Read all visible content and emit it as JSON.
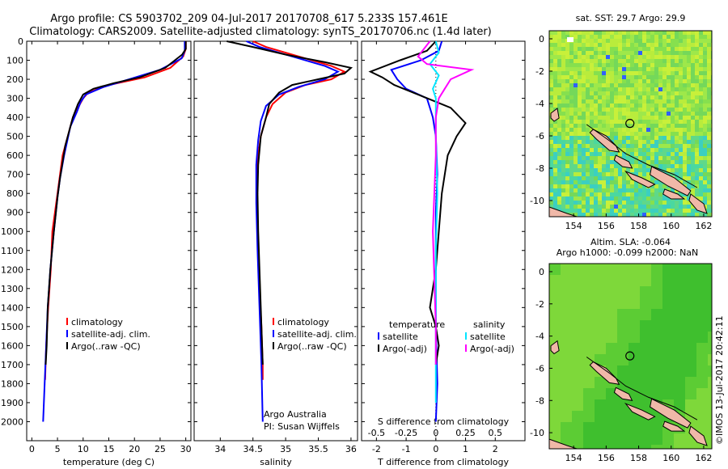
{
  "header": {
    "line1": "Argo profile: CS 5903702_209 04-Jul-2017 20170708_617 5.233S 157.461E",
    "line2": "Climatology: CARS2009. Satellite-adjusted climatology: synTS_20170706.nc (1.4d later)"
  },
  "side_label": "©IMOS 13-Jul-2017 20:42:11",
  "colors": {
    "climatology": "#ff0000",
    "satellite": "#0000ff",
    "argo": "#000000",
    "sat_salinity": "#00e5ff",
    "argo_salinity": "#ff00ff"
  },
  "chart_data": [
    {
      "type": "line",
      "title": "",
      "xlabel": "temperature (deg C)",
      "ylabel": "",
      "xlim": [
        -1,
        31
      ],
      "ylim": [
        2100,
        0
      ],
      "x_ticks": [
        "0",
        "5",
        "10",
        "15",
        "20",
        "25",
        "30"
      ],
      "y_ticks": [
        "0",
        "100",
        "200",
        "300",
        "400",
        "500",
        "600",
        "700",
        "800",
        "900",
        "1000",
        "1100",
        "1200",
        "1300",
        "1400",
        "1500",
        "1600",
        "1700",
        "1800",
        "1900",
        "2000"
      ],
      "legend": [
        "climatology",
        "satellite-adj. clim.",
        "Argo(..raw -QC)"
      ],
      "series": [
        {
          "name": "climatology",
          "color": "#ff0000",
          "points": [
            [
              30,
              0
            ],
            [
              30,
              40
            ],
            [
              29.5,
              80
            ],
            [
              27,
              140
            ],
            [
              22,
              190
            ],
            [
              15,
              230
            ],
            [
              11,
              270
            ],
            [
              10,
              300
            ],
            [
              9,
              350
            ],
            [
              8,
              400
            ],
            [
              7,
              500
            ],
            [
              6,
              600
            ],
            [
              5.5,
              700
            ],
            [
              5,
              800
            ],
            [
              4.5,
              900
            ],
            [
              4,
              1000
            ],
            [
              3.7,
              1200
            ],
            [
              3.2,
              1400
            ],
            [
              2.8,
              1600
            ],
            [
              2.6,
              1780
            ]
          ]
        },
        {
          "name": "satellite-adj. clim.",
          "color": "#0000ff",
          "points": [
            [
              29.8,
              0
            ],
            [
              29.8,
              50
            ],
            [
              29.2,
              90
            ],
            [
              25,
              150
            ],
            [
              19,
              200
            ],
            [
              14,
              240
            ],
            [
              10.5,
              280
            ],
            [
              9.5,
              320
            ],
            [
              8.8,
              370
            ],
            [
              7.5,
              450
            ],
            [
              6.3,
              600
            ],
            [
              5.5,
              720
            ],
            [
              5,
              820
            ],
            [
              4.3,
              1000
            ],
            [
              3.6,
              1200
            ],
            [
              3.1,
              1400
            ],
            [
              2.8,
              1600
            ],
            [
              2.5,
              1800
            ],
            [
              2.2,
              2000
            ]
          ]
        },
        {
          "name": "Argo(..raw -QC)",
          "color": "#000000",
          "points": [
            [
              30,
              0
            ],
            [
              30,
              40
            ],
            [
              29.3,
              70
            ],
            [
              26,
              140
            ],
            [
              21,
              190
            ],
            [
              16,
              220
            ],
            [
              12,
              250
            ],
            [
              10,
              280
            ],
            [
              9,
              330
            ],
            [
              8,
              400
            ],
            [
              6.5,
              550
            ],
            [
              5.5,
              720
            ],
            [
              5,
              820
            ],
            [
              4.3,
              1000
            ],
            [
              3.6,
              1200
            ],
            [
              3.1,
              1400
            ],
            [
              2.9,
              1600
            ],
            [
              2.7,
              1700
            ]
          ]
        }
      ]
    },
    {
      "type": "line",
      "title": "",
      "xlabel": "salinity",
      "ylabel": "",
      "xlim": [
        33.6,
        36.1
      ],
      "ylim": [
        2100,
        0
      ],
      "x_ticks": [
        "34",
        "34.5",
        "35",
        "35.5",
        "36"
      ],
      "legend": [
        "climatology",
        "satellite-adj. clim.",
        "Argo(..raw -QC)"
      ],
      "annotation": [
        "Argo Australia",
        "PI: Susan Wijffels"
      ],
      "series": [
        {
          "name": "climatology",
          "color": "#ff0000",
          "points": [
            [
              34.5,
              0
            ],
            [
              34.7,
              30
            ],
            [
              35.2,
              80
            ],
            [
              35.7,
              130
            ],
            [
              35.9,
              160
            ],
            [
              35.7,
              200
            ],
            [
              35.3,
              230
            ],
            [
              35,
              270
            ],
            [
              34.8,
              330
            ],
            [
              34.7,
              400
            ],
            [
              34.62,
              500
            ],
            [
              34.58,
              600
            ],
            [
              34.56,
              700
            ],
            [
              34.56,
              900
            ],
            [
              34.58,
              1100
            ],
            [
              34.6,
              1300
            ],
            [
              34.63,
              1500
            ],
            [
              34.65,
              1700
            ],
            [
              34.65,
              1780
            ]
          ]
        },
        {
          "name": "satellite-adj. clim.",
          "color": "#0000ff",
          "points": [
            [
              34.4,
              0
            ],
            [
              34.6,
              30
            ],
            [
              35.1,
              80
            ],
            [
              35.6,
              130
            ],
            [
              35.8,
              160
            ],
            [
              35.6,
              200
            ],
            [
              35.2,
              240
            ],
            [
              34.9,
              280
            ],
            [
              34.7,
              340
            ],
            [
              34.62,
              420
            ],
            [
              34.58,
              520
            ],
            [
              34.55,
              650
            ],
            [
              34.55,
              850
            ],
            [
              34.57,
              1100
            ],
            [
              34.6,
              1400
            ],
            [
              34.63,
              1700
            ],
            [
              34.65,
              2000
            ]
          ]
        },
        {
          "name": "Argo(..raw -QC)",
          "color": "#000000",
          "points": [
            [
              34.1,
              0
            ],
            [
              34.5,
              30
            ],
            [
              35,
              70
            ],
            [
              35.6,
              110
            ],
            [
              36,
              140
            ],
            [
              35.9,
              170
            ],
            [
              35.5,
              200
            ],
            [
              35.1,
              230
            ],
            [
              34.9,
              270
            ],
            [
              34.75,
              330
            ],
            [
              34.7,
              400
            ],
            [
              34.62,
              500
            ],
            [
              34.58,
              650
            ],
            [
              34.57,
              800
            ],
            [
              34.58,
              1000
            ],
            [
              34.6,
              1200
            ],
            [
              34.62,
              1400
            ],
            [
              34.64,
              1600
            ],
            [
              34.65,
              1700
            ]
          ]
        }
      ]
    },
    {
      "type": "line",
      "title": "",
      "xlabel": "T difference from climatology",
      "x2label": "S difference from climatology",
      "xlim": [
        -2.5,
        3
      ],
      "ylim": [
        2100,
        0
      ],
      "x_ticks": [
        "-2",
        "-1",
        "0",
        "1",
        "2"
      ],
      "x2_ticks": [
        "-0.5",
        "-0.25",
        "0",
        "0.25",
        "0.5"
      ],
      "legend": {
        "temperature": [
          "temperature",
          "satellite",
          "Argo(-adj)"
        ],
        "salinity": [
          "salinity",
          "satellite",
          "Argo(-adj)"
        ]
      },
      "series": [
        {
          "name": "temperature satellite",
          "color": "#0000ff",
          "points": [
            [
              0.2,
              0
            ],
            [
              0.1,
              50
            ],
            [
              -0.5,
              100
            ],
            [
              -1.5,
              150
            ],
            [
              -1.3,
              200
            ],
            [
              -1,
              250
            ],
            [
              -0.3,
              300
            ],
            [
              -0.2,
              350
            ],
            [
              -0.1,
              400
            ],
            [
              0,
              500
            ],
            [
              0.05,
              700
            ],
            [
              0,
              900
            ],
            [
              0,
              1200
            ],
            [
              0,
              1500
            ],
            [
              0.05,
              1800
            ],
            [
              0,
              2000
            ]
          ]
        },
        {
          "name": "temperature Argo(-adj)",
          "color": "#000000",
          "points": [
            [
              0,
              0
            ],
            [
              -0.3,
              50
            ],
            [
              -1.2,
              100
            ],
            [
              -2.2,
              160
            ],
            [
              -1.8,
              190
            ],
            [
              -1.4,
              230
            ],
            [
              -0.6,
              280
            ],
            [
              0.5,
              350
            ],
            [
              1,
              430
            ],
            [
              0.7,
              500
            ],
            [
              0.4,
              600
            ],
            [
              0.2,
              800
            ],
            [
              0.1,
              1000
            ],
            [
              0,
              1200
            ],
            [
              -0.2,
              1400
            ],
            [
              0,
              1500
            ],
            [
              0.1,
              1600
            ],
            [
              0,
              1700
            ]
          ]
        },
        {
          "name": "salinity satellite",
          "color": "#00e5ff",
          "points": [
            [
              0,
              0
            ],
            [
              0.1,
              60
            ],
            [
              -0.2,
              120
            ],
            [
              0.1,
              180
            ],
            [
              -0.1,
              250
            ],
            [
              0,
              300
            ],
            [
              0,
              500
            ],
            [
              0.05,
              800
            ],
            [
              0,
              1100
            ],
            [
              0,
              1400
            ],
            [
              0,
              1700
            ],
            [
              0,
              1900
            ]
          ]
        },
        {
          "name": "salinity Argo(-adj)",
          "color": "#ff00ff",
          "points": [
            [
              -0.2,
              0
            ],
            [
              -0.6,
              80
            ],
            [
              -0.3,
              120
            ],
            [
              1.2,
              150
            ],
            [
              0.5,
              200
            ],
            [
              0.3,
              250
            ],
            [
              0.1,
              300
            ],
            [
              0,
              400
            ],
            [
              0,
              600
            ],
            [
              -0.1,
              1000
            ],
            [
              0,
              1500
            ],
            [
              0,
              1700
            ]
          ]
        }
      ]
    },
    {
      "type": "heatmap",
      "title": "sat. SST: 29.7 Argo: 29.9",
      "xlim": [
        152.5,
        162.5
      ],
      "ylim": [
        -11,
        0.5
      ],
      "x_ticks": [
        "154",
        "156",
        "158",
        "160",
        "162"
      ],
      "y_ticks": [
        "0",
        "-2",
        "-4",
        "-6",
        "-8",
        "-10"
      ],
      "marker": {
        "lon": 157.461,
        "lat": -5.233
      }
    },
    {
      "type": "heatmap",
      "title": "Altim. SLA: -0.064",
      "subtitle": "Argo h1000: -0.099 h2000: NaN",
      "xlim": [
        152.5,
        162.5
      ],
      "ylim": [
        -11,
        0.5
      ],
      "x_ticks": [
        "154",
        "156",
        "158",
        "160",
        "162"
      ],
      "y_ticks": [
        "0",
        "-2",
        "-4",
        "-6",
        "-8",
        "-10"
      ],
      "marker": {
        "lon": 157.461,
        "lat": -5.233
      }
    }
  ]
}
